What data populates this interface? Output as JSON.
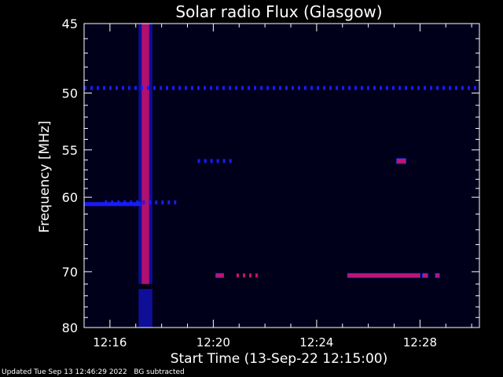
{
  "chart_data": {
    "type": "heatmap",
    "title": "Solar radio Flux (Glasgow)",
    "xlabel": "Start Time (13-Sep-22 12:15:00)",
    "ylabel": "Frequency [MHz]",
    "x_unit": "minutes after 12:15:00",
    "xlim": [
      0,
      15.3
    ],
    "ylim": [
      80,
      45
    ],
    "y_scale": "reciprocal",
    "x_ticks": [
      {
        "value": 1,
        "label": "12:16"
      },
      {
        "value": 5,
        "label": "12:20"
      },
      {
        "value": 9,
        "label": "12:24"
      },
      {
        "value": 13,
        "label": "12:28"
      }
    ],
    "y_ticks": [
      {
        "value": 45,
        "label": "45"
      },
      {
        "value": 50,
        "label": "50"
      },
      {
        "value": 55,
        "label": "55"
      },
      {
        "value": 60,
        "label": "60"
      },
      {
        "value": 70,
        "label": "70"
      },
      {
        "value": 80,
        "label": "80"
      }
    ],
    "colors": {
      "background": "#000000",
      "plot_bg": "#00001a",
      "weak": "#1a1aff",
      "strong": "#cc1166",
      "axes": "#ffffff"
    },
    "features": [
      {
        "kind": "burst",
        "x_start": 2.2,
        "x_end": 2.55,
        "f_min": 45,
        "f_max": 80,
        "intensity": "strong"
      },
      {
        "kind": "band",
        "x_start": 0,
        "x_end": 15.3,
        "freq": 49.6,
        "intensity": "weak",
        "dotted": true
      },
      {
        "kind": "band",
        "x_start": 0,
        "x_end": 2.2,
        "freq": 60.8,
        "intensity": "weak"
      },
      {
        "kind": "band",
        "x_start": 0.8,
        "x_end": 3.5,
        "freq": 60.6,
        "intensity": "weak",
        "dotted": true
      },
      {
        "kind": "band",
        "x_start": 4.4,
        "x_end": 5.7,
        "freq": 56.1,
        "intensity": "weak",
        "dotted": true
      },
      {
        "kind": "spot",
        "x_start": 12.1,
        "x_end": 12.45,
        "freq": 56.1,
        "intensity": "strong"
      },
      {
        "kind": "band",
        "x_start": 5.1,
        "x_end": 5.4,
        "freq": 70.6,
        "intensity": "strong"
      },
      {
        "kind": "band",
        "x_start": 5.9,
        "x_end": 6.7,
        "freq": 70.6,
        "intensity": "strong",
        "dotted": true
      },
      {
        "kind": "band",
        "x_start": 10.2,
        "x_end": 13.0,
        "freq": 70.6,
        "intensity": "strong"
      },
      {
        "kind": "band",
        "x_start": 13.1,
        "x_end": 13.3,
        "freq": 70.6,
        "intensity": "strong"
      },
      {
        "kind": "band",
        "x_start": 13.6,
        "x_end": 13.75,
        "freq": 70.6,
        "intensity": "strong"
      }
    ]
  },
  "footer": {
    "updated": "Updated Tue Sep 13 12:46:29 2022",
    "note": "BG subtracted"
  }
}
